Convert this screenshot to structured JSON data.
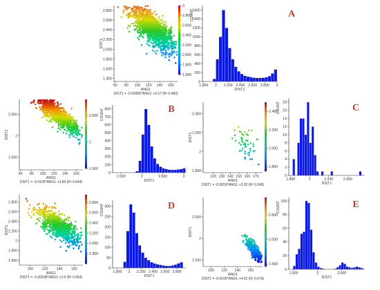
{
  "panels": [
    {
      "letter": "A",
      "scatter": {
        "xlabel": "ANG1",
        "ylabel": "DIST1",
        "xlim": [
          58,
          172
        ],
        "ylim": [
          1.34,
          2.9
        ],
        "xticks": [
          60,
          80,
          100,
          120,
          140,
          160
        ],
        "xticklabels": [
          "60",
          "80",
          "100",
          "120",
          "140",
          "160"
        ],
        "yticks": [
          1.4,
          1.6,
          1.8,
          2.0,
          2.2,
          2.4,
          2.6,
          2.8
        ],
        "yticklabels": [
          "1.400",
          "1.600",
          "1.800",
          "2.000",
          "2.200",
          "2.400",
          "2.600",
          "2.800"
        ],
        "equation": "DIST1 = -0.00905*ANG1 +3.57 (R² 0.400)",
        "n": 1400,
        "slope": -0.00905,
        "intercept": 3.57,
        "spread": 0.15,
        "xcenter": 128,
        "xsd": 20
      },
      "colorbar": {
        "min": 1.6,
        "max": 3.0,
        "ticks": [
          1.6,
          1.8,
          2.0,
          2.2,
          2.4,
          2.6,
          2.8,
          3.0
        ],
        "ticklabels": [
          "1.600",
          "1.800",
          "2.000",
          "2.200",
          "2.400",
          "2.600",
          "2.800",
          "3"
        ]
      },
      "histogram": {
        "xlabel": "DIST1",
        "ylabel": "COUNT",
        "xlim": [
          1.78,
          3.0
        ],
        "ylim": [
          0,
          1700
        ],
        "xticks": [
          1.8,
          2.0,
          2.2,
          2.4,
          2.6,
          2.8,
          3.0
        ],
        "xticklabels": [
          "1.800",
          "2",
          "2.200",
          "2.400",
          "2.600",
          "2.800",
          "3"
        ],
        "yticks": [
          0,
          200,
          400,
          600,
          800,
          1000,
          1200,
          1400,
          1600
        ],
        "yticklabels": [
          "0",
          "200",
          "400",
          "600",
          "800",
          "1000",
          "1200",
          "1400",
          "1600"
        ],
        "bin_start": 1.95,
        "bin_width": 0.05,
        "counts": [
          60,
          500,
          1000,
          1600,
          1200,
          750,
          500,
          330,
          230,
          170,
          130,
          110,
          95,
          85,
          80,
          80,
          85,
          95,
          120,
          180,
          270
        ]
      }
    },
    {
      "letter": "B",
      "scatter": {
        "xlabel": "ANG1",
        "ylabel": "DIST1",
        "xlim": [
          58,
          172
        ],
        "ylim": [
          1.2,
          2.85
        ],
        "xticks": [
          60,
          80,
          100,
          120,
          140,
          160
        ],
        "xticklabels": [
          "60",
          "80",
          "100",
          "120",
          "140",
          "160"
        ],
        "yticks": [
          1.5,
          2.0,
          2.5
        ],
        "yticklabels": [
          "1.500",
          "2",
          "2.500"
        ],
        "equation": "DIST1 = -0.0105*ANG1 +3.83 (R² 0.644)",
        "n": 1000,
        "slope": -0.0105,
        "intercept": 3.83,
        "spread": 0.12,
        "xcenter": 125,
        "xsd": 22
      },
      "colorbar": {
        "min": 1.5,
        "max": 2.8,
        "ticks": [
          1.5,
          2.0,
          2.5
        ],
        "ticklabels": [
          "1.500",
          "2",
          "2.500"
        ]
      },
      "histogram": {
        "xlabel": "DIST1",
        "ylabel": "COUNT",
        "xlim": [
          1.3,
          3.05
        ],
        "ylim": [
          0,
          850
        ],
        "xticks": [
          1.5,
          2.0,
          2.5,
          3.0
        ],
        "xticklabels": [
          "1.500",
          "2",
          "2.500",
          "3"
        ],
        "yticks": [
          0,
          100,
          200,
          300,
          400,
          500,
          600,
          700,
          800
        ],
        "yticklabels": [
          "0",
          "100",
          "200",
          "300",
          "400",
          "500",
          "600",
          "700",
          "800"
        ],
        "bin_start": 1.85,
        "bin_width": 0.07,
        "counts": [
          20,
          150,
          480,
          800,
          600,
          330,
          180,
          110,
          75,
          55,
          45,
          38,
          35,
          35,
          40,
          45,
          55,
          70
        ]
      }
    },
    {
      "letter": "C",
      "scatter": {
        "xlabel": "ANG1",
        "ylabel": "DIST1",
        "xlim": [
          108,
          178
        ],
        "ylim": [
          1.78,
          2.52
        ],
        "xticks": [
          120,
          130,
          140,
          150,
          160,
          170
        ],
        "xticklabels": [
          "120",
          "130",
          "140",
          "150",
          "160",
          "170"
        ],
        "yticks": [
          1.8,
          2.0,
          2.2,
          2.4
        ],
        "yticklabels": [
          "1.800",
          "2",
          "2.200",
          "2.400"
        ],
        "equation": "DIST1 = -0.0059*ANG1 +3.02 (R² 0.248)",
        "n": 55,
        "slope": -0.0059,
        "intercept": 3.02,
        "spread": 0.08,
        "xcenter": 160,
        "xsd": 8
      },
      "colorbar": {
        "min": 1.75,
        "max": 2.5,
        "ticks": [
          1.8,
          2.0,
          2.2,
          2.4
        ],
        "ticklabels": [
          "1.800",
          "2.000",
          "2.200",
          "2.400"
        ]
      },
      "histogram": {
        "xlabel": "DIST1",
        "ylabel": "COUNT",
        "xlim": [
          1.78,
          2.58
        ],
        "ylim": [
          0,
          19
        ],
        "xticks": [
          1.8,
          2.0,
          2.2,
          2.4
        ],
        "xticklabels": [
          "1.800",
          "2",
          "2.200",
          "2.400"
        ],
        "yticks": [
          0,
          2,
          4,
          6,
          8,
          10,
          12,
          14,
          16,
          18
        ],
        "yticklabels": [
          "0",
          "2",
          "4",
          "6",
          "8",
          "10",
          "12",
          "14",
          "16",
          "18"
        ],
        "bin_start": 1.82,
        "bin_width": 0.025,
        "counts": [
          4,
          0,
          8,
          14,
          14,
          10,
          18,
          8,
          12,
          5,
          1,
          0,
          1,
          0,
          0,
          0,
          1,
          0,
          0,
          0,
          0,
          0,
          0,
          0,
          0,
          0,
          0,
          0,
          1
        ]
      }
    },
    {
      "letter": "D",
      "scatter": {
        "xlabel": "ANG1",
        "ylabel": "DIST1",
        "xlim": [
          85,
          172
        ],
        "ylim": [
          1.5,
          2.95
        ],
        "xticks": [
          100,
          120,
          140,
          160
        ],
        "xticklabels": [
          "100",
          "120",
          "140",
          "160"
        ],
        "yticks": [
          1.6,
          1.8,
          2.0,
          2.2,
          2.4,
          2.6,
          2.8
        ],
        "yticklabels": [
          "1.600",
          "1.800",
          "2",
          "2.200",
          "2.400",
          "2.600",
          "2.800"
        ],
        "equation": "DIST1 = -0.00938*ANG1 +3.6 (R² 0.454)",
        "n": 800,
        "slope": -0.00938,
        "intercept": 3.6,
        "spread": 0.13,
        "xcenter": 140,
        "xsd": 15
      },
      "colorbar": {
        "min": 1.6,
        "max": 2.95,
        "ticks": [
          1.8,
          2.0,
          2.2,
          2.4,
          2.6,
          2.8
        ],
        "ticklabels": [
          "1.800",
          "2.000",
          "2.200",
          "2.400",
          "2.600",
          "2.800"
        ]
      },
      "histogram": {
        "xlabel": "DIST1",
        "ylabel": "COUNT",
        "xlim": [
          1.72,
          2.95
        ],
        "ylim": [
          0,
          330
        ],
        "xticks": [
          1.8,
          2.0,
          2.2,
          2.4,
          2.6,
          2.8
        ],
        "xticklabels": [
          "1.800",
          "2",
          "2.200",
          "2.400",
          "2.600",
          "2.800"
        ],
        "yticks": [
          0,
          50,
          100,
          150,
          200,
          250,
          300
        ],
        "yticklabels": [
          "0",
          "50",
          "100",
          "150",
          "200",
          "250",
          "300"
        ],
        "bin_start": 1.9,
        "bin_width": 0.05,
        "counts": [
          30,
          180,
          310,
          270,
          170,
          110,
          75,
          50,
          38,
          28,
          22,
          18,
          15,
          12,
          10,
          10,
          12,
          16,
          22,
          28
        ]
      }
    },
    {
      "letter": "E",
      "scatter": {
        "xlabel": "ANG1",
        "ylabel": "DIST1",
        "xlim": [
          88,
          178
        ],
        "ylim": [
          1.35,
          2.95
        ],
        "xticks": [
          100,
          120,
          140,
          160
        ],
        "xticklabels": [
          "100",
          "120",
          "140",
          "160"
        ],
        "yticks": [
          1.5,
          2.0,
          2.5
        ],
        "yticklabels": [
          "1.500",
          "2",
          "2.500"
        ],
        "equation": "DIST1 = -0.0169*ANG1 +4.52 (R² 0.676)",
        "n": 400,
        "slope": -0.0169,
        "intercept": 4.52,
        "spread": 0.08,
        "xcenter": 165,
        "xsd": 6
      },
      "colorbar": {
        "min": 1.45,
        "max": 2.85,
        "ticks": [
          1.5,
          2.0,
          2.5
        ],
        "ticklabels": [
          "1.500",
          "2.000",
          "2.500"
        ]
      },
      "histogram": {
        "xlabel": "DIST1",
        "ylabel": "COUNT",
        "xlim": [
          1.4,
          2.98
        ],
        "ylim": [
          0,
          105
        ],
        "xticks": [
          1.5,
          2.0,
          2.5
        ],
        "xticklabels": [
          "1.500",
          "2",
          "2.500"
        ],
        "yticks": [
          0,
          20,
          40,
          60,
          80,
          100
        ],
        "yticklabels": [
          "0",
          "20",
          "40",
          "60",
          "80",
          "100"
        ],
        "bin_start": 1.49,
        "bin_width": 0.05,
        "counts": [
          5,
          22,
          30,
          52,
          55,
          100,
          97,
          58,
          25,
          10,
          4,
          2,
          1,
          0,
          0,
          0,
          0,
          1,
          3,
          6,
          10,
          8,
          4,
          3,
          2,
          3,
          4,
          3,
          2
        ]
      }
    }
  ]
}
